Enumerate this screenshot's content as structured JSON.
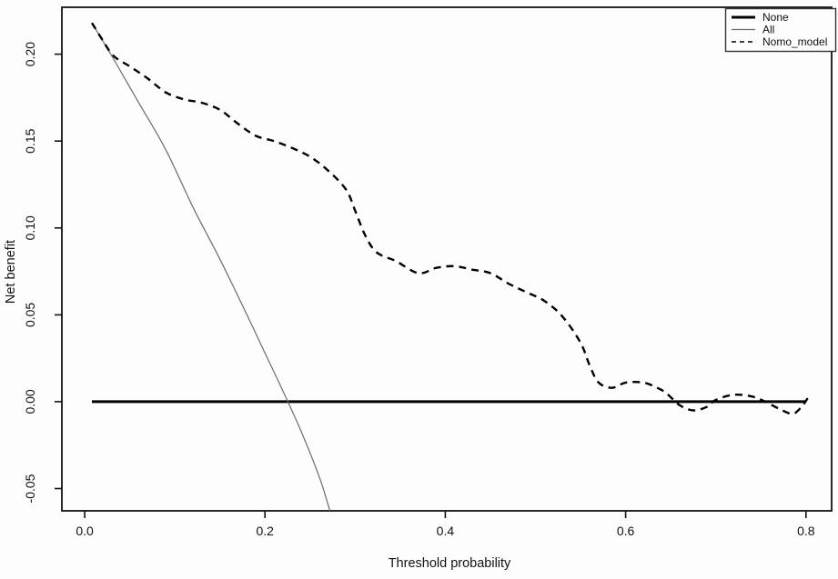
{
  "chart_data": {
    "type": "line",
    "title": "",
    "xlabel": "Threshold probability",
    "ylabel": "Net benefit",
    "grid": false,
    "legend_position": "top-right",
    "xlim": [
      -0.0253,
      0.8285
    ],
    "ylim": [
      -0.0628,
      0.227
    ],
    "x_ticks": [
      0.0,
      0.2,
      0.4,
      0.6,
      0.8
    ],
    "x_tick_labels": [
      "0.0",
      "0.2",
      "0.4",
      "0.6",
      "0.8"
    ],
    "y_ticks": [
      -0.05,
      0.0,
      0.05,
      0.1,
      0.15,
      0.2
    ],
    "y_tick_labels": [
      "-0.05",
      "0.00",
      "0.05",
      "0.10",
      "0.15",
      "0.20"
    ],
    "colors": {
      "none_line": "#000000",
      "all_line": "#6b6b6b",
      "nomo_line": "#000000",
      "axis": "#111111"
    },
    "series": [
      {
        "name": "None",
        "style": "solid",
        "color": "#000000",
        "width": 3,
        "smooth": false,
        "points": [
          [
            0.008,
            0.0
          ],
          [
            0.8,
            0.0
          ]
        ]
      },
      {
        "name": "All",
        "style": "solid",
        "color": "#6b6b6b",
        "width": 1.2,
        "smooth": true,
        "points": [
          [
            0.008,
            0.218
          ],
          [
            0.03,
            0.199
          ],
          [
            0.06,
            0.172
          ],
          [
            0.09,
            0.145
          ],
          [
            0.12,
            0.112
          ],
          [
            0.15,
            0.082
          ],
          [
            0.18,
            0.05
          ],
          [
            0.2,
            0.028
          ],
          [
            0.22,
            0.006
          ],
          [
            0.24,
            -0.017
          ],
          [
            0.26,
            -0.043
          ],
          [
            0.272,
            -0.0628
          ]
        ]
      },
      {
        "name": "Nomo_model",
        "style": "dashed",
        "color": "#000000",
        "width": 2.4,
        "smooth": true,
        "points": [
          [
            0.008,
            0.218
          ],
          [
            0.02,
            0.208
          ],
          [
            0.032,
            0.199
          ],
          [
            0.05,
            0.193
          ],
          [
            0.07,
            0.186
          ],
          [
            0.09,
            0.178
          ],
          [
            0.11,
            0.174
          ],
          [
            0.13,
            0.172
          ],
          [
            0.15,
            0.168
          ],
          [
            0.17,
            0.16
          ],
          [
            0.19,
            0.153
          ],
          [
            0.21,
            0.15
          ],
          [
            0.23,
            0.146
          ],
          [
            0.25,
            0.141
          ],
          [
            0.27,
            0.133
          ],
          [
            0.29,
            0.122
          ],
          [
            0.3,
            0.11
          ],
          [
            0.31,
            0.097
          ],
          [
            0.32,
            0.088
          ],
          [
            0.33,
            0.084
          ],
          [
            0.345,
            0.081
          ],
          [
            0.37,
            0.074
          ],
          [
            0.39,
            0.077
          ],
          [
            0.41,
            0.078
          ],
          [
            0.43,
            0.076
          ],
          [
            0.45,
            0.074
          ],
          [
            0.47,
            0.068
          ],
          [
            0.49,
            0.063
          ],
          [
            0.51,
            0.058
          ],
          [
            0.53,
            0.049
          ],
          [
            0.55,
            0.034
          ],
          [
            0.56,
            0.021
          ],
          [
            0.57,
            0.011
          ],
          [
            0.585,
            0.008
          ],
          [
            0.6,
            0.011
          ],
          [
            0.62,
            0.011
          ],
          [
            0.635,
            0.008
          ],
          [
            0.645,
            0.005
          ],
          [
            0.66,
            -0.002
          ],
          [
            0.675,
            -0.005
          ],
          [
            0.69,
            -0.003
          ],
          [
            0.7,
            0.001
          ],
          [
            0.72,
            0.004
          ],
          [
            0.74,
            0.003
          ],
          [
            0.755,
            0.0
          ],
          [
            0.77,
            -0.004
          ],
          [
            0.785,
            -0.007
          ],
          [
            0.795,
            -0.003
          ],
          [
            0.802,
            0.002
          ]
        ]
      }
    ],
    "legend": {
      "items": [
        {
          "label": "None",
          "style": "solid",
          "color": "#000000",
          "width": 3
        },
        {
          "label": "All",
          "style": "solid",
          "color": "#6b6b6b",
          "width": 1.2
        },
        {
          "label": "Nomo_model",
          "style": "dashed",
          "color": "#000000",
          "width": 1.6
        }
      ]
    }
  }
}
